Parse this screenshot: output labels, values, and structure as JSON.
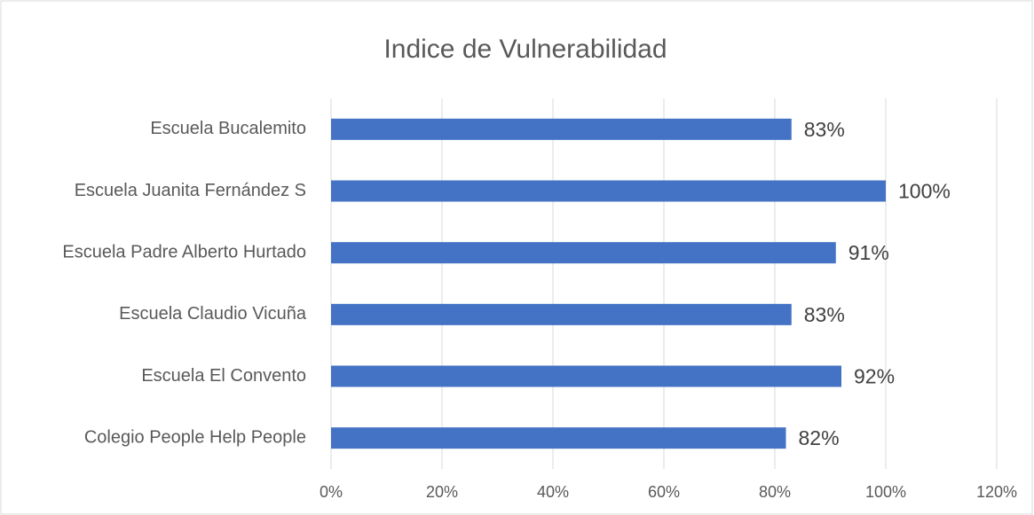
{
  "chart_data": {
    "type": "bar",
    "orientation": "horizontal",
    "title": "Indice de Vulnerabilidad",
    "categories": [
      "Escuela Bucalemito",
      "Escuela Juanita Fernández S",
      "Escuela Padre Alberto Hurtado",
      "Escuela Claudio Vicuña",
      "Escuela El Convento",
      "Colegio People Help People"
    ],
    "values": [
      83,
      100,
      91,
      83,
      92,
      82
    ],
    "value_labels": [
      "83%",
      "100%",
      "91%",
      "83%",
      "92%",
      "82%"
    ],
    "color": "#4472c4",
    "xlim": [
      0,
      120
    ],
    "xticks": [
      {
        "value": 0,
        "label": "0%"
      },
      {
        "value": 20,
        "label": "20%"
      },
      {
        "value": 40,
        "label": "40%"
      },
      {
        "value": 60,
        "label": "60%"
      },
      {
        "value": 80,
        "label": "80%"
      },
      {
        "value": 100,
        "label": "100%"
      },
      {
        "value": 120,
        "label": "120%"
      }
    ],
    "grid": true
  }
}
